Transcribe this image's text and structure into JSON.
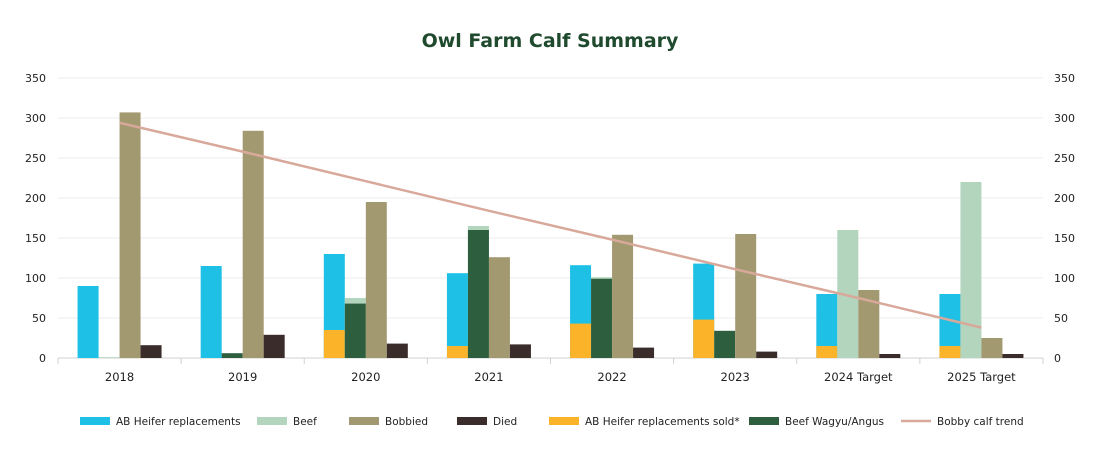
{
  "chart_data": {
    "type": "bar",
    "title": "Owl Farm Calf Summary",
    "categories": [
      "2018",
      "2019",
      "2020",
      "2021",
      "2022",
      "2023",
      "2024 Target",
      "2025 Target"
    ],
    "ylim": [
      0,
      350
    ],
    "yticks": [
      0,
      50,
      100,
      150,
      200,
      250,
      300,
      350
    ],
    "y2lim": [
      0,
      350
    ],
    "grid": true,
    "legend_position": "bottom",
    "series": [
      {
        "name": "AB Heifer replacements",
        "color": "#1ec0e6",
        "group": "A",
        "values": [
          90,
          115,
          130,
          106,
          116,
          118,
          80,
          80
        ]
      },
      {
        "name": "AB Heifer replacements sold*",
        "color": "#fbb32a",
        "group": "A",
        "values": [
          0,
          0,
          35,
          15,
          43,
          48,
          15,
          15
        ]
      },
      {
        "name": "Beef",
        "color": "#b3d4bd",
        "group": "B",
        "values": [
          1,
          0,
          75,
          165,
          101,
          0,
          160,
          220
        ]
      },
      {
        "name": "Beef Wagyu/Angus",
        "color": "#2d5e3e",
        "group": "B",
        "values": [
          0,
          6,
          68,
          160,
          99,
          34,
          0,
          0
        ]
      },
      {
        "name": "Bobbied",
        "color": "#a39971",
        "group": "C",
        "values": [
          307,
          284,
          195,
          126,
          154,
          155,
          85,
          25
        ]
      },
      {
        "name": "Died",
        "color": "#3a2c2b",
        "group": "D",
        "values": [
          16,
          29,
          18,
          17,
          13,
          8,
          5,
          5
        ]
      }
    ],
    "trend": {
      "name": "Bobby calf trend",
      "color": "#d8a99a",
      "values": [
        294,
        258,
        221,
        184,
        148,
        111,
        75,
        38
      ]
    },
    "legend_order": [
      "AB Heifer replacements",
      "Beef",
      "Bobbied",
      "Died",
      "AB Heifer replacements sold*",
      "Beef Wagyu/Angus",
      "Bobby calf trend"
    ]
  }
}
